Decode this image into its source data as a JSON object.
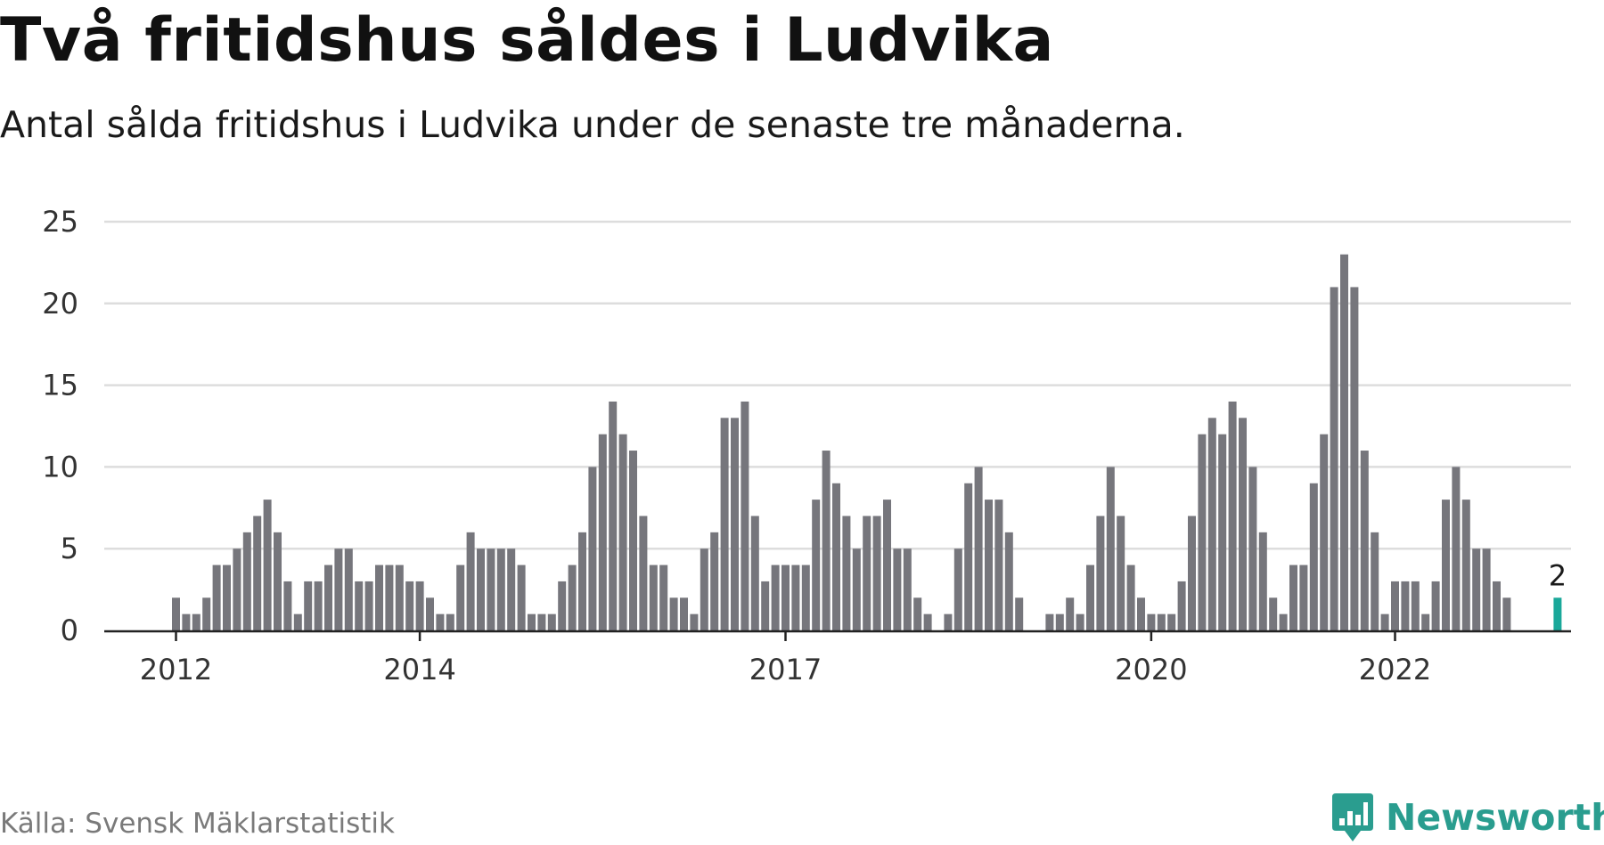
{
  "header": {
    "title": "Två fritidshus såldes i Ludvika",
    "subtitle": "Antal sålda fritidshus i Ludvika under de senaste tre månaderna."
  },
  "footer": {
    "source": "Källa: Svensk Mäklarstatistik",
    "brand": "Newsworthy",
    "brand_icon": "chat-bubble-chart-icon"
  },
  "colors": {
    "bar": "#76767c",
    "highlight": "#1aa89a",
    "grid": "#dddddd",
    "axis": "#222222",
    "brand": "#2a9d8f"
  },
  "chart_data": {
    "type": "bar",
    "title": "Två fritidshus såldes i Ludvika",
    "subtitle": "Antal sålda fritidshus i Ludvika under de senaste tre månaderna.",
    "xlabel": "",
    "ylabel": "",
    "ylim": [
      0,
      25
    ],
    "yticks": [
      0,
      5,
      10,
      15,
      20,
      25
    ],
    "grid": true,
    "legend": "none",
    "x_start": "2012-01",
    "x_tick_labels": [
      "2012",
      "2014",
      "2017",
      "2020",
      "2022"
    ],
    "highlight": {
      "x": "2023-05",
      "value": 2,
      "label": "2"
    },
    "values": [
      2,
      1,
      1,
      2,
      4,
      4,
      5,
      6,
      7,
      8,
      6,
      3,
      1,
      3,
      3,
      4,
      5,
      5,
      3,
      3,
      4,
      4,
      4,
      3,
      3,
      2,
      1,
      1,
      4,
      6,
      5,
      5,
      5,
      5,
      4,
      1,
      1,
      1,
      3,
      4,
      6,
      10,
      12,
      14,
      12,
      11,
      7,
      4,
      4,
      2,
      2,
      1,
      5,
      6,
      13,
      13,
      14,
      7,
      3,
      4,
      4,
      4,
      4,
      8,
      11,
      9,
      7,
      5,
      7,
      7,
      8,
      5,
      5,
      2,
      1,
      0,
      1,
      5,
      9,
      10,
      8,
      8,
      6,
      2,
      0,
      0,
      1,
      1,
      2,
      1,
      4,
      7,
      10,
      7,
      4,
      2,
      1,
      1,
      1,
      3,
      7,
      12,
      13,
      12,
      14,
      13,
      10,
      6,
      2,
      1,
      4,
      4,
      9,
      12,
      21,
      23,
      21,
      11,
      6,
      1,
      3,
      3,
      3,
      1,
      3,
      8,
      10,
      8,
      5,
      5,
      3,
      2
    ]
  }
}
